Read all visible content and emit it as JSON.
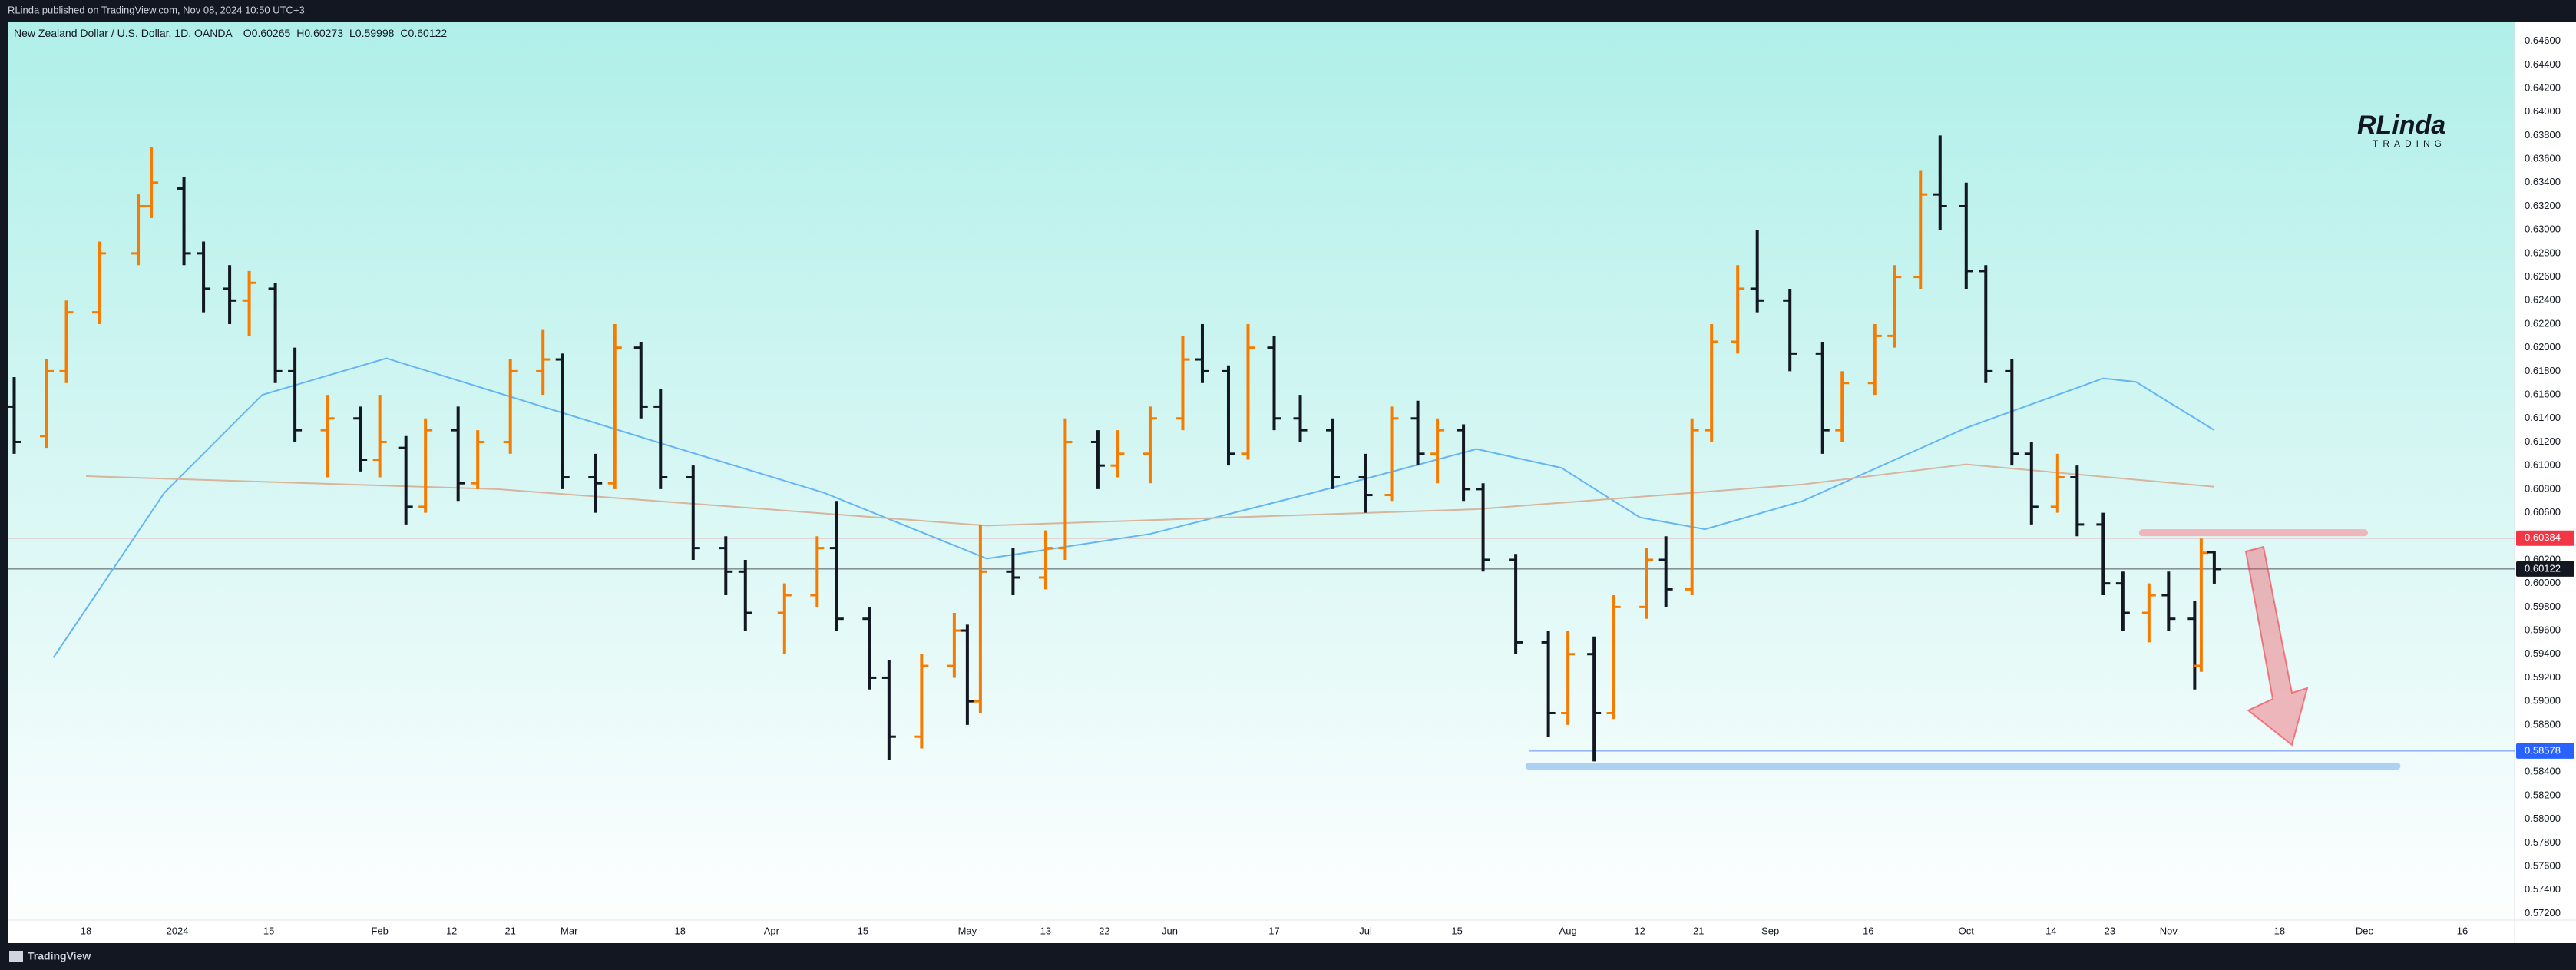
{
  "header": {
    "published": "RLinda published on TradingView.com, Nov 08, 2024 10:50 UTC+3",
    "symbol": "New Zealand Dollar / U.S. Dollar, 1D, OANDA",
    "ohlc_prefixes": [
      "O",
      "H",
      "L",
      "C"
    ],
    "logo": [
      "RLinda",
      "TRADING"
    ],
    "footer": "TradingView"
  },
  "chart_data": {
    "type": "ohlc",
    "up_color": "#f57c00",
    "down_color": "#131722",
    "x": [
      "2023-12-07",
      "2023-12-12",
      "2023-12-15",
      "2023-12-20",
      "2023-12-26",
      "2023-12-28",
      "2024-01-02",
      "2024-01-05",
      "2024-01-09",
      "2024-01-12",
      "2024-01-16",
      "2024-01-19",
      "2024-01-24",
      "2024-01-29",
      "2024-02-01",
      "2024-02-05",
      "2024-02-08",
      "2024-02-13",
      "2024-02-16",
      "2024-02-21",
      "2024-02-26",
      "2024-02-29",
      "2024-03-05",
      "2024-03-08",
      "2024-03-12",
      "2024-03-15",
      "2024-03-20",
      "2024-03-25",
      "2024-03-28",
      "2024-04-03",
      "2024-04-08",
      "2024-04-11",
      "2024-04-16",
      "2024-04-19",
      "2024-04-24",
      "2024-04-29",
      "2024-05-01",
      "2024-05-03",
      "2024-05-08",
      "2024-05-13",
      "2024-05-16",
      "2024-05-21",
      "2024-05-24",
      "2024-05-29",
      "2024-06-03",
      "2024-06-06",
      "2024-06-10",
      "2024-06-13",
      "2024-06-17",
      "2024-06-21",
      "2024-06-26",
      "2024-07-01",
      "2024-07-05",
      "2024-07-09",
      "2024-07-12",
      "2024-07-16",
      "2024-07-19",
      "2024-07-24",
      "2024-07-29",
      "2024-08-01",
      "2024-08-05",
      "2024-08-08",
      "2024-08-13",
      "2024-08-16",
      "2024-08-20",
      "2024-08-23",
      "2024-08-27",
      "2024-08-30",
      "2024-09-04",
      "2024-09-09",
      "2024-09-12",
      "2024-09-17",
      "2024-09-20",
      "2024-09-24",
      "2024-09-27",
      "2024-10-01",
      "2024-10-04",
      "2024-10-08",
      "2024-10-11",
      "2024-10-15",
      "2024-10-18",
      "2024-10-22",
      "2024-10-25",
      "2024-10-29",
      "2024-11-01",
      "2024-11-05",
      "2024-11-06",
      "2024-11-08"
    ],
    "open": [
      0.615,
      0.6125,
      0.618,
      0.623,
      0.628,
      0.632,
      0.6335,
      0.628,
      0.625,
      0.624,
      0.625,
      0.618,
      0.613,
      0.614,
      0.6105,
      0.6115,
      0.6065,
      0.613,
      0.6085,
      0.612,
      0.618,
      0.619,
      0.609,
      0.6085,
      0.62,
      0.615,
      0.609,
      0.603,
      0.601,
      0.5975,
      0.599,
      0.603,
      0.597,
      0.592,
      0.587,
      0.593,
      0.596,
      0.59,
      0.601,
      0.6005,
      0.603,
      0.612,
      0.61,
      0.611,
      0.614,
      0.619,
      0.618,
      0.611,
      0.62,
      0.614,
      0.613,
      0.609,
      0.6075,
      0.614,
      0.611,
      0.613,
      0.608,
      0.602,
      0.595,
      0.589,
      0.594,
      0.589,
      0.598,
      0.602,
      0.5995,
      0.613,
      0.6205,
      0.625,
      0.624,
      0.6195,
      0.613,
      0.617,
      0.621,
      0.626,
      0.633,
      0.632,
      0.6265,
      0.618,
      0.611,
      0.6065,
      0.609,
      0.605,
      0.6,
      0.5975,
      0.599,
      0.597,
      0.593,
      0.60265
    ],
    "high": [
      0.6175,
      0.619,
      0.624,
      0.629,
      0.633,
      0.637,
      0.6345,
      0.629,
      0.627,
      0.6265,
      0.6255,
      0.62,
      0.616,
      0.615,
      0.616,
      0.6125,
      0.614,
      0.615,
      0.613,
      0.619,
      0.6215,
      0.6195,
      0.611,
      0.622,
      0.6205,
      0.6165,
      0.61,
      0.604,
      0.602,
      0.6,
      0.604,
      0.607,
      0.598,
      0.5935,
      0.594,
      0.5975,
      0.5965,
      0.605,
      0.603,
      0.6045,
      0.614,
      0.613,
      0.613,
      0.615,
      0.621,
      0.622,
      0.6185,
      0.622,
      0.621,
      0.616,
      0.614,
      0.611,
      0.615,
      0.6155,
      0.614,
      0.6135,
      0.6085,
      0.6025,
      0.596,
      0.596,
      0.5955,
      0.599,
      0.603,
      0.604,
      0.614,
      0.622,
      0.627,
      0.63,
      0.625,
      0.6205,
      0.618,
      0.622,
      0.627,
      0.635,
      0.638,
      0.634,
      0.627,
      0.619,
      0.612,
      0.611,
      0.61,
      0.606,
      0.601,
      0.6,
      0.601,
      0.5985,
      0.6038,
      0.60273
    ],
    "low": [
      0.611,
      0.6115,
      0.617,
      0.622,
      0.627,
      0.631,
      0.627,
      0.623,
      0.622,
      0.621,
      0.617,
      0.612,
      0.609,
      0.6095,
      0.609,
      0.605,
      0.606,
      0.607,
      0.608,
      0.611,
      0.616,
      0.608,
      0.606,
      0.608,
      0.614,
      0.608,
      0.602,
      0.599,
      0.596,
      0.594,
      0.598,
      0.596,
      0.591,
      0.585,
      0.586,
      0.592,
      0.588,
      0.589,
      0.599,
      0.5995,
      0.602,
      0.608,
      0.609,
      0.6085,
      0.613,
      0.617,
      0.61,
      0.6105,
      0.613,
      0.612,
      0.608,
      0.606,
      0.607,
      0.61,
      0.6085,
      0.607,
      0.601,
      0.594,
      0.587,
      0.588,
      0.5849,
      0.5885,
      0.597,
      0.598,
      0.599,
      0.612,
      0.6195,
      0.623,
      0.618,
      0.611,
      0.612,
      0.616,
      0.62,
      0.625,
      0.63,
      0.625,
      0.617,
      0.61,
      0.605,
      0.606,
      0.604,
      0.599,
      0.596,
      0.595,
      0.596,
      0.591,
      0.5925,
      0.59998
    ],
    "close": [
      0.612,
      0.618,
      0.623,
      0.628,
      0.632,
      0.634,
      0.628,
      0.625,
      0.624,
      0.6255,
      0.618,
      0.613,
      0.614,
      0.6105,
      0.612,
      0.6065,
      0.613,
      0.6085,
      0.612,
      0.618,
      0.619,
      0.609,
      0.6085,
      0.62,
      0.615,
      0.609,
      0.603,
      0.601,
      0.5975,
      0.599,
      0.603,
      0.597,
      0.592,
      0.587,
      0.593,
      0.596,
      0.59,
      0.601,
      0.6005,
      0.603,
      0.612,
      0.61,
      0.611,
      0.614,
      0.619,
      0.618,
      0.611,
      0.62,
      0.614,
      0.613,
      0.609,
      0.6075,
      0.614,
      0.611,
      0.613,
      0.608,
      0.602,
      0.595,
      0.589,
      0.594,
      0.589,
      0.598,
      0.602,
      0.5995,
      0.613,
      0.6205,
      0.625,
      0.624,
      0.6195,
      0.613,
      0.617,
      0.621,
      0.626,
      0.633,
      0.632,
      0.6265,
      0.618,
      0.611,
      0.6065,
      0.609,
      0.605,
      0.6,
      0.5975,
      0.599,
      0.597,
      0.593,
      0.6026,
      0.60122
    ],
    "overlays": [
      {
        "color": "#64b5f6",
        "x": [
          "2023-12-13",
          "2023-12-30",
          "2024-01-14",
          "2024-02-02",
          "2024-03-15",
          "2024-04-09",
          "2024-05-04",
          "2024-05-29",
          "2024-06-23",
          "2024-07-18",
          "2024-07-31",
          "2024-08-12",
          "2024-08-22",
          "2024-09-06",
          "2024-10-01",
          "2024-10-22",
          "2024-10-27",
          "2024-11-08"
        ],
        "values": [
          0.5937,
          0.6077,
          0.616,
          0.6191,
          0.6119,
          0.6077,
          0.6021,
          0.6042,
          0.6077,
          0.6114,
          0.6098,
          0.6056,
          0.6046,
          0.607,
          0.6132,
          0.6174,
          0.6171,
          0.613
        ]
      },
      {
        "color": "#d7b49e",
        "x": [
          "2023-12-18",
          "2024-02-19",
          "2024-05-04",
          "2024-07-18",
          "2024-09-06",
          "2024-10-01",
          "2024-11-08"
        ],
        "values": [
          0.6091,
          0.608,
          0.6049,
          0.6063,
          0.6084,
          0.6101,
          0.6082
        ]
      }
    ],
    "price_lines": [
      {
        "value": 0.60384,
        "color": "#f23645",
        "x_from": "2023-12-06"
      },
      {
        "value": 0.60122,
        "color": "#131722",
        "x_from": "2023-12-06"
      },
      {
        "value": 0.58578,
        "color": "#2962ff",
        "x_from": "2024-07-26"
      }
    ],
    "drawings": [
      {
        "value": 0.6043,
        "x": [
          "2024-10-28",
          "2024-12-01"
        ],
        "color": "#f4a7b0"
      },
      {
        "value": 0.5845,
        "x": [
          "2024-07-26",
          "2024-12-06"
        ],
        "color": "#9cc8f2"
      }
    ],
    "xlim": [
      "2023-12-06",
      "2024-12-24"
    ],
    "ylim": [
      0.57144,
      0.64767
    ],
    "xticks": [
      {
        "value": "2023-12-18",
        "label": "18"
      },
      {
        "value": "2024-01-01",
        "label": "2024"
      },
      {
        "value": "2024-01-15",
        "label": "15"
      },
      {
        "value": "2024-02-01",
        "label": "Feb"
      },
      {
        "value": "2024-02-12",
        "label": "12"
      },
      {
        "value": "2024-02-21",
        "label": "21"
      },
      {
        "value": "2024-03-01",
        "label": "Mar"
      },
      {
        "value": "2024-03-18",
        "label": "18"
      },
      {
        "value": "2024-04-01",
        "label": "Apr"
      },
      {
        "value": "2024-04-15",
        "label": "15"
      },
      {
        "value": "2024-05-01",
        "label": "May"
      },
      {
        "value": "2024-05-13",
        "label": "13"
      },
      {
        "value": "2024-05-22",
        "label": "22"
      },
      {
        "value": "2024-06-01",
        "label": "Jun"
      },
      {
        "value": "2024-06-17",
        "label": "17"
      },
      {
        "value": "2024-07-01",
        "label": "Jul"
      },
      {
        "value": "2024-07-15",
        "label": "15"
      },
      {
        "value": "2024-08-01",
        "label": "Aug"
      },
      {
        "value": "2024-08-12",
        "label": "12"
      },
      {
        "value": "2024-08-21",
        "label": "21"
      },
      {
        "value": "2024-09-01",
        "label": "Sep"
      },
      {
        "value": "2024-09-16",
        "label": "16"
      },
      {
        "value": "2024-10-01",
        "label": "Oct"
      },
      {
        "value": "2024-10-14",
        "label": "14"
      },
      {
        "value": "2024-10-23",
        "label": "23"
      },
      {
        "value": "2024-11-01",
        "label": "Nov"
      },
      {
        "value": "2024-11-18",
        "label": "18"
      },
      {
        "value": "2024-12-01",
        "label": "Dec"
      },
      {
        "value": "2024-12-16",
        "label": "16"
      }
    ],
    "yticks": [
      {
        "value": 0.572,
        "label": "0.57200"
      },
      {
        "value": 0.574,
        "label": "0.57400"
      },
      {
        "value": 0.576,
        "label": "0.57600"
      },
      {
        "value": 0.578,
        "label": "0.57800"
      },
      {
        "value": 0.58,
        "label": "0.58000"
      },
      {
        "value": 0.582,
        "label": "0.58200"
      },
      {
        "value": 0.584,
        "label": "0.58400"
      },
      {
        "value": 0.586,
        "label": "0.58600"
      },
      {
        "value": 0.588,
        "label": "0.58800"
      },
      {
        "value": 0.59,
        "label": "0.59000"
      },
      {
        "value": 0.592,
        "label": "0.59200"
      },
      {
        "value": 0.594,
        "label": "0.59400"
      },
      {
        "value": 0.596,
        "label": "0.59600"
      },
      {
        "value": 0.598,
        "label": "0.59800"
      },
      {
        "value": 0.6,
        "label": "0.60000"
      },
      {
        "value": 0.602,
        "label": "0.60200"
      },
      {
        "value": 0.604,
        "label": "0.60400"
      },
      {
        "value": 0.606,
        "label": "0.60600"
      },
      {
        "value": 0.608,
        "label": "0.60800"
      },
      {
        "value": 0.61,
        "label": "0.61000"
      },
      {
        "value": 0.612,
        "label": "0.61200"
      },
      {
        "value": 0.614,
        "label": "0.61400"
      },
      {
        "value": 0.616,
        "label": "0.61600"
      },
      {
        "value": 0.618,
        "label": "0.61800"
      },
      {
        "value": 0.62,
        "label": "0.62000"
      },
      {
        "value": 0.622,
        "label": "0.62200"
      },
      {
        "value": 0.624,
        "label": "0.62400"
      },
      {
        "value": 0.626,
        "label": "0.62600"
      },
      {
        "value": 0.628,
        "label": "0.62800"
      },
      {
        "value": 0.63,
        "label": "0.63000"
      },
      {
        "value": 0.632,
        "label": "0.63200"
      },
      {
        "value": 0.634,
        "label": "0.63400"
      },
      {
        "value": 0.636,
        "label": "0.63600"
      },
      {
        "value": 0.638,
        "label": "0.63800"
      },
      {
        "value": 0.64,
        "label": "0.64000"
      },
      {
        "value": 0.642,
        "label": "0.64200"
      },
      {
        "value": 0.644,
        "label": "0.64400"
      },
      {
        "value": 0.646,
        "label": "0.64600"
      }
    ],
    "grid": false
  }
}
